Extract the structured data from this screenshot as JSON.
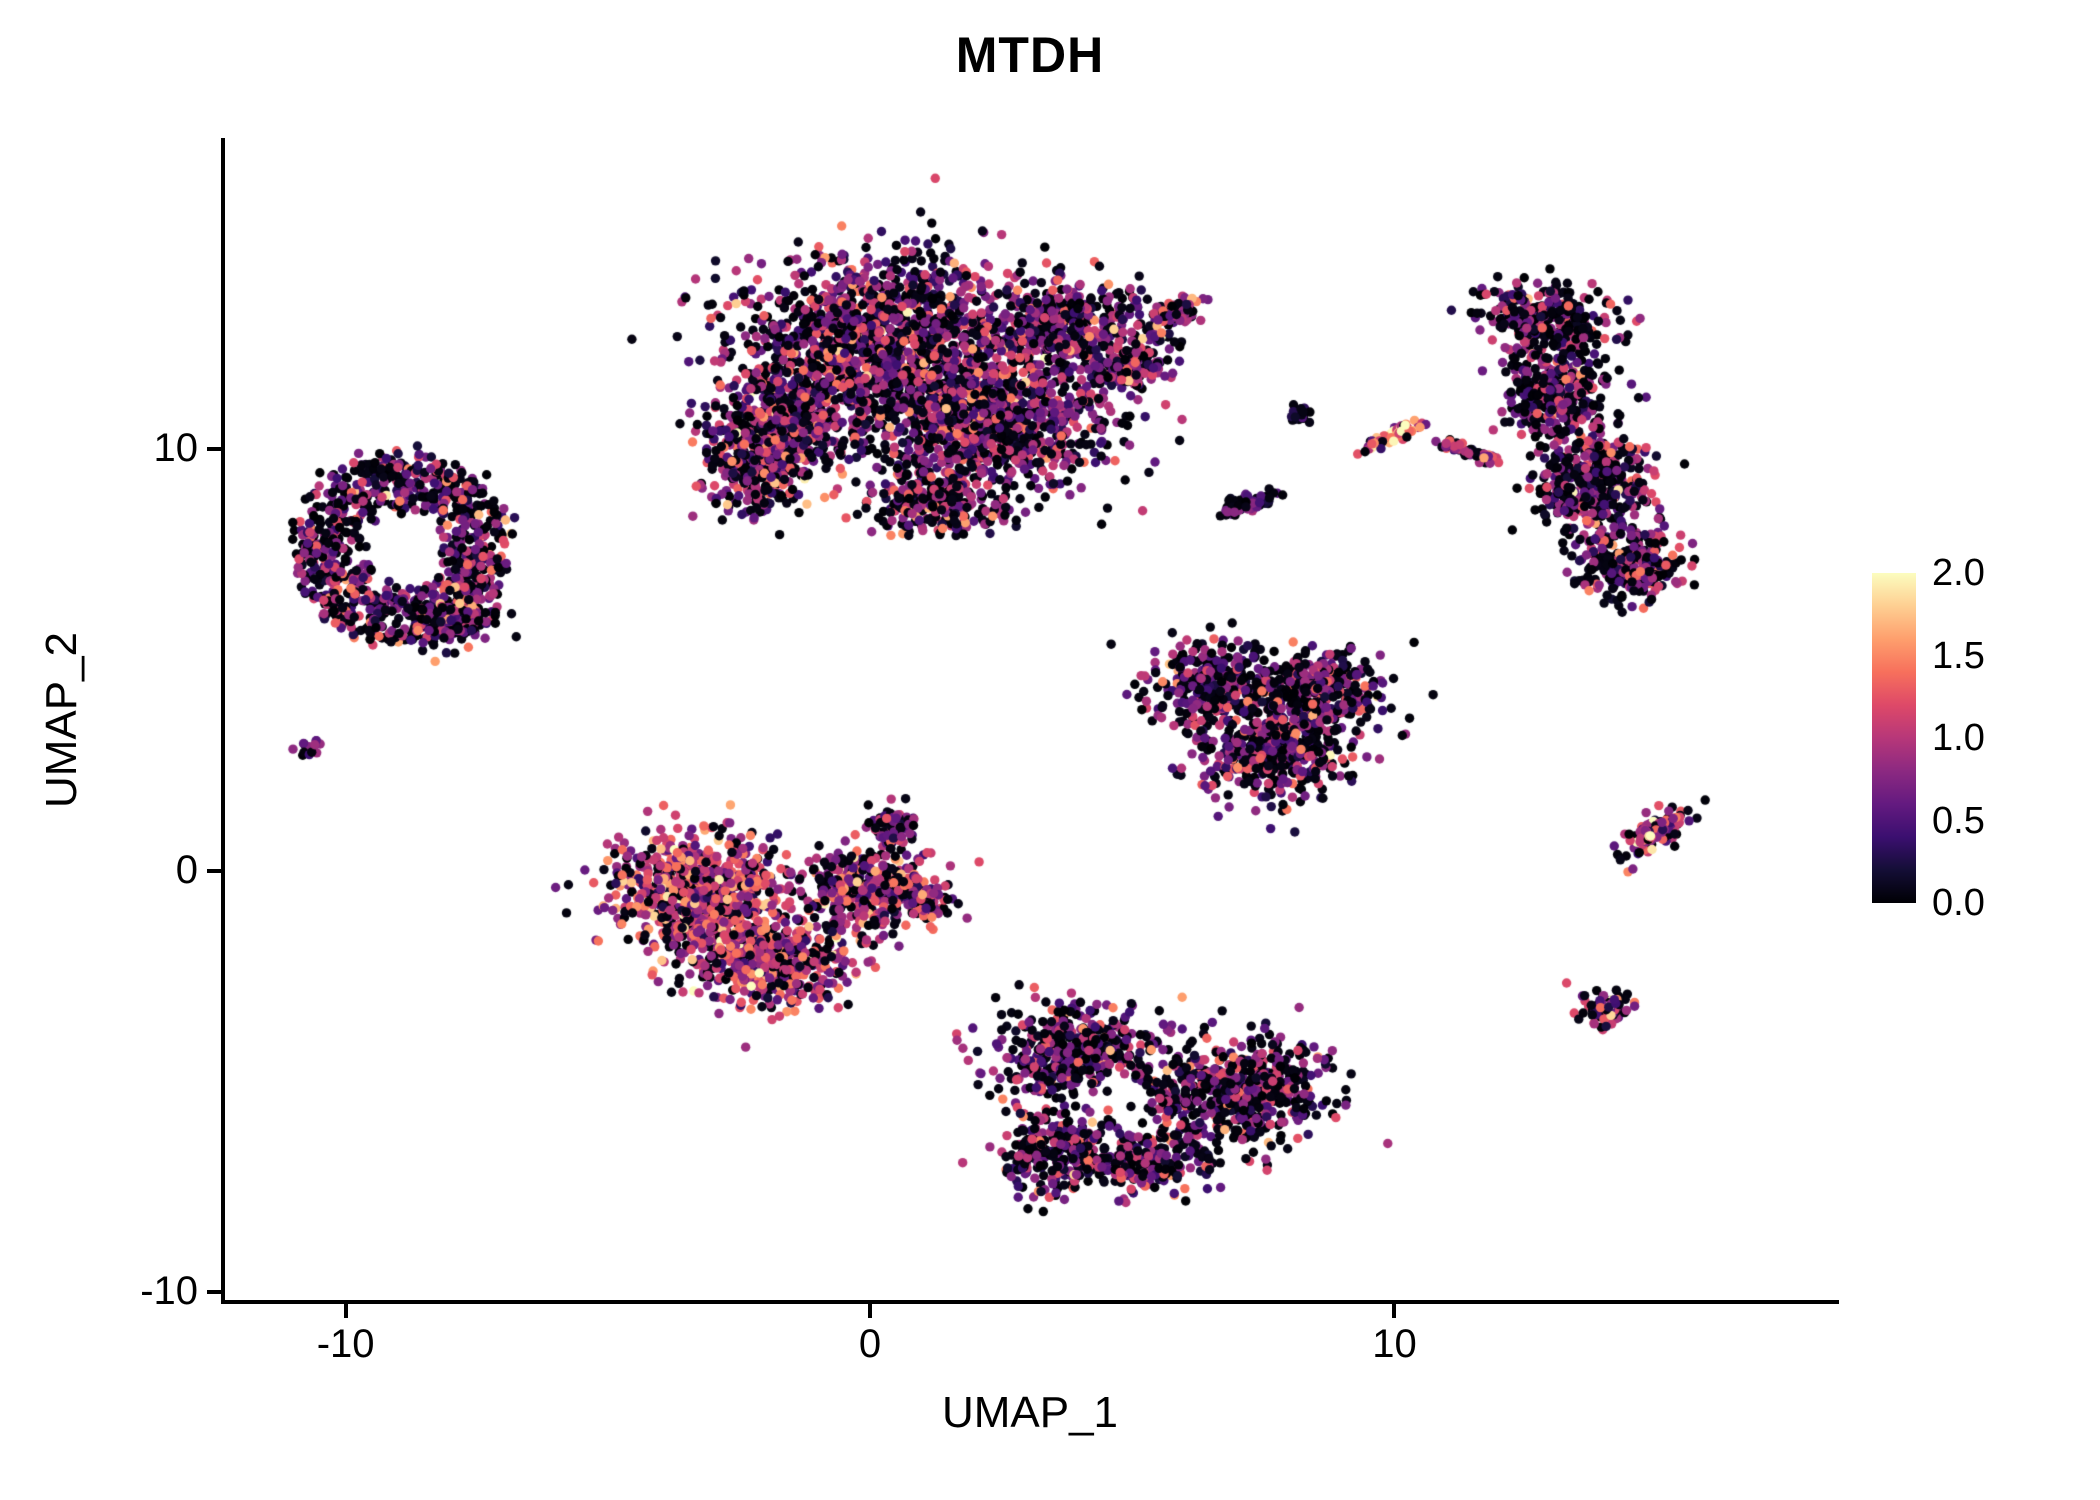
{
  "figure": {
    "background": "#ffffff",
    "axis_color": "#000000",
    "text_color": "#000000"
  },
  "chart_data": {
    "type": "scatter",
    "title": "MTDH",
    "xlabel": "UMAP_1",
    "ylabel": "UMAP_2",
    "xlim": [
      -12.3,
      18.4
    ],
    "ylim": [
      -10.2,
      17.35
    ],
    "x_ticks": [
      {
        "label": "-10",
        "value": -10
      },
      {
        "label": "0",
        "value": 0
      },
      {
        "label": "10",
        "value": 10
      }
    ],
    "y_ticks": [
      {
        "label": "-10",
        "value": -10
      },
      {
        "label": "0",
        "value": 0
      },
      {
        "label": "10",
        "value": 10
      }
    ],
    "grid": false,
    "point_radius_px": 4.7,
    "seed": 42,
    "legend": {
      "type": "colorbar",
      "position": "right",
      "min": 0.0,
      "max": 2.0,
      "ticks": [
        {
          "label": "2.0",
          "value": 2.0
        },
        {
          "label": "1.5",
          "value": 1.5
        },
        {
          "label": "1.0",
          "value": 1.0
        },
        {
          "label": "0.5",
          "value": 0.5
        },
        {
          "label": "0.0",
          "value": 0.0
        }
      ],
      "colormap": "magma",
      "stops": [
        "#000004",
        "#140e36",
        "#3b0f70",
        "#641a80",
        "#8c2981",
        "#b73779",
        "#de4968",
        "#f7705c",
        "#fe9f6d",
        "#fecf92",
        "#fcfdbf"
      ]
    },
    "clusters": [
      {
        "name": "top-center-a",
        "cx": 0.2,
        "cy": 12.6,
        "rx": 2.7,
        "ry": 2.0,
        "rot": 0,
        "n": 1500,
        "p0": 0.35,
        "mean": 0.8,
        "sd": 0.42
      },
      {
        "name": "top-center-b",
        "cx": 2.4,
        "cy": 10.6,
        "rx": 2.1,
        "ry": 1.6,
        "rot": 0,
        "n": 900,
        "p0": 0.35,
        "mean": 0.8,
        "sd": 0.42
      },
      {
        "name": "top-center-c",
        "cx": -1.6,
        "cy": 10.6,
        "rx": 1.4,
        "ry": 1.3,
        "rot": 0,
        "n": 450,
        "p0": 0.35,
        "mean": 0.8,
        "sd": 0.42
      },
      {
        "name": "top-center-d",
        "cx": 3.8,
        "cy": 13.0,
        "rx": 1.4,
        "ry": 1.0,
        "rot": 0,
        "n": 380,
        "p0": 0.35,
        "mean": 0.8,
        "sd": 0.42
      },
      {
        "name": "top-center-arm",
        "cx": 4.9,
        "cy": 11.9,
        "rx": 1.0,
        "ry": 0.5,
        "rot": 30,
        "n": 150,
        "p0": 0.35,
        "mean": 0.8,
        "sd": 0.42
      },
      {
        "name": "top-center-arm-tip",
        "cx": 5.8,
        "cy": 13.2,
        "rx": 0.6,
        "ry": 0.28,
        "rot": 35,
        "n": 80,
        "p0": 0.3,
        "mean": 0.9,
        "sd": 0.4
      },
      {
        "name": "top-center-e",
        "cx": -2.2,
        "cy": 9.4,
        "rx": 0.9,
        "ry": 1.0,
        "rot": 0,
        "n": 240,
        "p0": 0.35,
        "mean": 0.8,
        "sd": 0.42
      },
      {
        "name": "top-center-f",
        "cx": 1.2,
        "cy": 8.7,
        "rx": 1.3,
        "ry": 0.8,
        "rot": 0,
        "n": 240,
        "p0": 0.35,
        "mean": 0.8,
        "sd": 0.42
      },
      {
        "name": "left-ring",
        "type": "ring",
        "cx": -8.9,
        "cy": 7.6,
        "rx": 2.0,
        "ry": 2.3,
        "inner": 0.42,
        "rot": 0,
        "n": 900,
        "p0": 0.4,
        "mean": 0.75,
        "sd": 0.42
      },
      {
        "name": "left-ring-south",
        "cx": -7.9,
        "cy": 5.9,
        "rx": 0.85,
        "ry": 0.6,
        "rot": 0,
        "n": 140,
        "p0": 0.4,
        "mean": 0.75,
        "sd": 0.42
      },
      {
        "name": "far-left-dot",
        "cx": -10.7,
        "cy": 2.9,
        "rx": 0.22,
        "ry": 0.2,
        "rot": 0,
        "n": 14,
        "p0": 0.3,
        "mean": 0.9,
        "sd": 0.4
      },
      {
        "name": "center-left-a",
        "cx": -3.3,
        "cy": -0.5,
        "rx": 1.6,
        "ry": 1.3,
        "rot": 0,
        "n": 800,
        "p0": 0.22,
        "mean": 1.05,
        "sd": 0.42
      },
      {
        "name": "center-left-b",
        "cx": -1.8,
        "cy": -2.1,
        "rx": 1.6,
        "ry": 1.1,
        "rot": 0,
        "n": 500,
        "p0": 0.22,
        "mean": 1.05,
        "sd": 0.42
      },
      {
        "name": "center-left-c",
        "cx": -0.1,
        "cy": -0.4,
        "rx": 1.3,
        "ry": 0.9,
        "rot": 0,
        "n": 350,
        "p0": 0.32,
        "mean": 0.9,
        "sd": 0.42
      },
      {
        "name": "center-left-spur",
        "cx": 0.4,
        "cy": 1.1,
        "rx": 0.4,
        "ry": 0.55,
        "rot": 0,
        "n": 80,
        "p0": 0.4,
        "mean": 0.7,
        "sd": 0.4
      },
      {
        "name": "center-left-tail",
        "cx": 1.0,
        "cy": -0.7,
        "rx": 0.6,
        "ry": 0.38,
        "rot": -15,
        "n": 100,
        "p0": 0.35,
        "mean": 0.85,
        "sd": 0.4
      },
      {
        "name": "mid-right-a",
        "cx": 6.6,
        "cy": 4.4,
        "rx": 1.3,
        "ry": 1.0,
        "rot": 0,
        "n": 330,
        "p0": 0.42,
        "mean": 0.75,
        "sd": 0.42
      },
      {
        "name": "mid-right-b",
        "cx": 8.6,
        "cy": 4.3,
        "rx": 1.2,
        "ry": 1.0,
        "rot": 0,
        "n": 330,
        "p0": 0.42,
        "mean": 0.75,
        "sd": 0.42
      },
      {
        "name": "mid-right-c",
        "cx": 7.7,
        "cy": 2.8,
        "rx": 1.4,
        "ry": 1.1,
        "rot": 0,
        "n": 420,
        "p0": 0.42,
        "mean": 0.75,
        "sd": 0.42
      },
      {
        "name": "bottom-a",
        "cx": 4.0,
        "cy": -4.4,
        "rx": 1.5,
        "ry": 1.2,
        "rot": 0,
        "n": 480,
        "hole": [
          4.5,
          -5.6,
          0.8
        ],
        "p0": 0.42,
        "mean": 0.75,
        "sd": 0.42
      },
      {
        "name": "bottom-b",
        "cx": 6.9,
        "cy": -5.3,
        "rx": 1.9,
        "ry": 1.3,
        "rot": 0,
        "n": 550,
        "hole": [
          4.5,
          -5.6,
          0.8
        ],
        "p0": 0.42,
        "mean": 0.75,
        "sd": 0.42
      },
      {
        "name": "bottom-c",
        "cx": 3.6,
        "cy": -6.7,
        "rx": 1.1,
        "ry": 1.0,
        "rot": 0,
        "n": 280,
        "p0": 0.42,
        "mean": 0.75,
        "sd": 0.42
      },
      {
        "name": "bottom-d",
        "cx": 5.5,
        "cy": -6.9,
        "rx": 1.3,
        "ry": 0.75,
        "rot": 0,
        "n": 200,
        "hole": [
          4.5,
          -5.6,
          0.8
        ],
        "p0": 0.42,
        "mean": 0.75,
        "sd": 0.42
      },
      {
        "name": "right-crescent-top",
        "cx": 12.9,
        "cy": 13.1,
        "rx": 1.2,
        "ry": 0.85,
        "rot": -15,
        "n": 300,
        "p0": 0.45,
        "mean": 0.72,
        "sd": 0.42
      },
      {
        "name": "right-crescent-mid",
        "cx": 13.0,
        "cy": 11.4,
        "rx": 0.95,
        "ry": 1.1,
        "rot": 0,
        "n": 320,
        "p0": 0.45,
        "mean": 0.72,
        "sd": 0.42
      },
      {
        "name": "right-crescent-low",
        "cx": 13.8,
        "cy": 9.2,
        "rx": 1.05,
        "ry": 1.4,
        "rot": 10,
        "n": 420,
        "p0": 0.45,
        "mean": 0.72,
        "sd": 0.42
      },
      {
        "name": "right-crescent-tip",
        "cx": 14.5,
        "cy": 7.3,
        "rx": 0.95,
        "ry": 0.95,
        "rot": 0,
        "n": 270,
        "p0": 0.45,
        "mean": 0.72,
        "sd": 0.42
      },
      {
        "name": "streak-bright",
        "cx": 9.9,
        "cy": 10.3,
        "rx": 0.75,
        "ry": 0.14,
        "rot": 30,
        "n": 70,
        "p0": 0.1,
        "mean": 1.3,
        "sd": 0.35
      },
      {
        "name": "streak-dark",
        "cx": 11.4,
        "cy": 9.95,
        "rx": 0.7,
        "ry": 0.13,
        "rot": -22,
        "n": 60,
        "p0": 0.35,
        "mean": 0.8,
        "sd": 0.4
      },
      {
        "name": "small-clump-a",
        "cx": 8.2,
        "cy": 10.85,
        "rx": 0.22,
        "ry": 0.22,
        "rot": 0,
        "n": 22,
        "p0": 0.5,
        "mean": 0.55,
        "sd": 0.35
      },
      {
        "name": "small-clump-b",
        "cx": 7.2,
        "cy": 8.7,
        "rx": 0.55,
        "ry": 0.22,
        "rot": 25,
        "n": 55,
        "p0": 0.5,
        "mean": 0.55,
        "sd": 0.35
      },
      {
        "name": "right-streak",
        "cx": 15.0,
        "cy": 0.9,
        "rx": 0.75,
        "ry": 0.32,
        "rot": 40,
        "n": 130,
        "p0": 0.25,
        "mean": 1.0,
        "sd": 0.45
      },
      {
        "name": "small-right-dot",
        "cx": 14.0,
        "cy": -3.3,
        "rx": 0.5,
        "ry": 0.42,
        "rot": 0,
        "n": 80,
        "p0": 0.25,
        "mean": 1.0,
        "sd": 0.45
      }
    ]
  }
}
